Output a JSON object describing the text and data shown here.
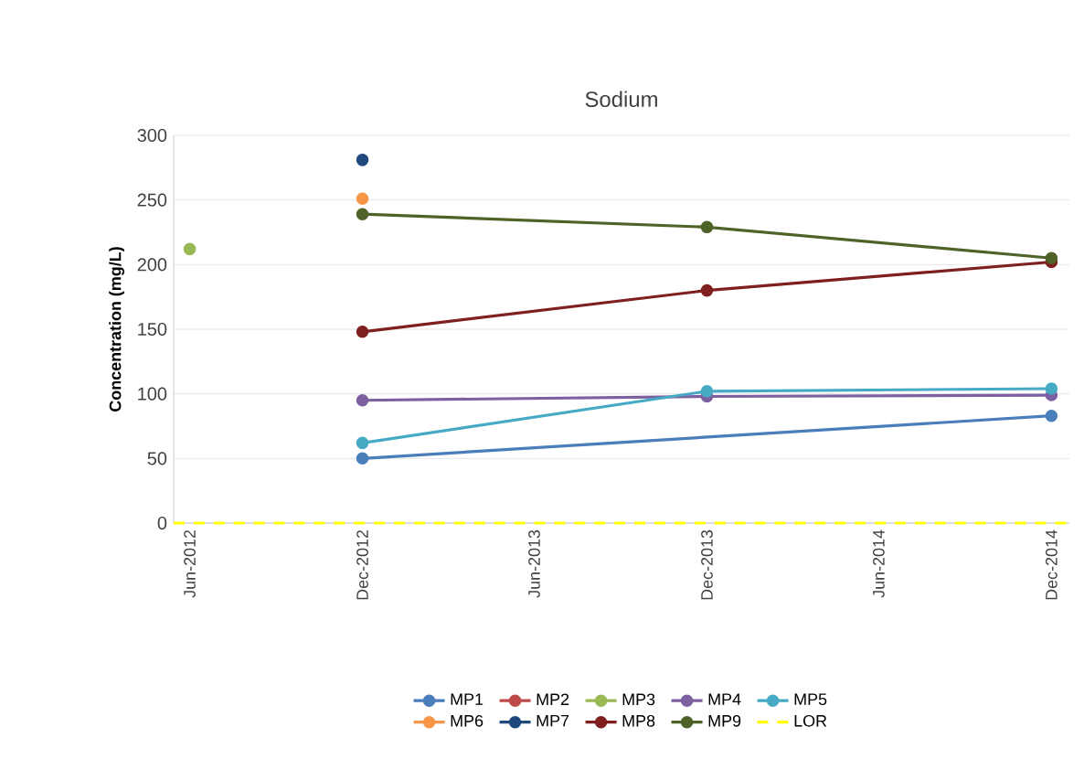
{
  "chart_data": {
    "type": "line",
    "title": "Sodium",
    "ylabel": "Concentration (mg/L)",
    "xlim": [
      "2012-05-15",
      "2014-12-20"
    ],
    "xticks": [
      {
        "value": "2012-06",
        "label": "Jun-2012"
      },
      {
        "value": "2012-12",
        "label": "Dec-2012"
      },
      {
        "value": "2013-06",
        "label": "Jun-2013"
      },
      {
        "value": "2013-12",
        "label": "Dec-2013"
      },
      {
        "value": "2014-06",
        "label": "Jun-2014"
      },
      {
        "value": "2014-12",
        "label": "Dec-2014"
      }
    ],
    "ylim": [
      0,
      300
    ],
    "yticks": [
      0,
      50,
      100,
      150,
      200,
      250,
      300
    ],
    "grid": "y",
    "legend": "bottom",
    "marker": "circle",
    "line_style": "solid",
    "series": [
      {
        "name": "MP1",
        "color": "#4a7ebb",
        "x": [
          "2012-12",
          "2014-12"
        ],
        "values": [
          50,
          83
        ]
      },
      {
        "name": "MP2",
        "color": "#be4b48"
      },
      {
        "name": "MP3",
        "color": "#98b954",
        "x": [
          "2012-06"
        ],
        "values": [
          212
        ]
      },
      {
        "name": "MP4",
        "color": "#7d60a0",
        "x": [
          "2012-12",
          "2013-12",
          "2014-12"
        ],
        "values": [
          95,
          98,
          99
        ]
      },
      {
        "name": "MP5",
        "color": "#46aac5",
        "x": [
          "2012-12",
          "2013-12",
          "2014-12"
        ],
        "values": [
          62,
          102,
          104
        ]
      },
      {
        "name": "MP6",
        "color": "#f79646",
        "x": [
          "2012-12"
        ],
        "values": [
          251
        ]
      },
      {
        "name": "MP7",
        "color": "#1f497d",
        "x": [
          "2012-12"
        ],
        "values": [
          281
        ]
      },
      {
        "name": "MP8",
        "color": "#7f1f1f",
        "x": [
          "2012-12",
          "2013-12",
          "2014-12"
        ],
        "values": [
          148,
          180,
          202
        ]
      },
      {
        "name": "MP9",
        "color": "#4f6228",
        "x": [
          "2012-12",
          "2013-12",
          "2014-12"
        ],
        "values": [
          239,
          229,
          205
        ]
      }
    ],
    "ref_lines": [
      {
        "axis": "y",
        "value": 0,
        "label": "LOR",
        "color": "#ffff00",
        "line_style": "dashed"
      }
    ]
  }
}
